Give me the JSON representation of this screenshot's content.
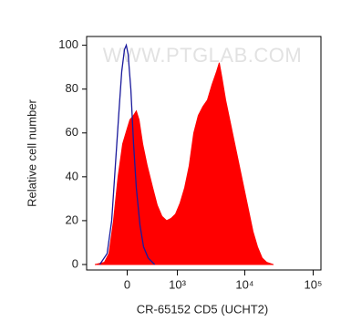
{
  "chart_data": {
    "type": "histogram-overlay",
    "watermark": "WWW.PTGLAB.COM",
    "x_label": "CR-65152 CD5 (UCHT2)",
    "y_label": "Relative cell number",
    "xscale": "biexponential",
    "xlim": [
      -700,
      130000
    ],
    "ylim": [
      -2.5,
      104
    ],
    "xticks": [
      {
        "value": 0,
        "label": "0"
      },
      {
        "value": 1000,
        "label": "10³"
      },
      {
        "value": 10000,
        "label": "10⁴"
      },
      {
        "value": 100000,
        "label": "10⁵"
      }
    ],
    "yticks": [
      0,
      20,
      40,
      60,
      80,
      100
    ],
    "series": [
      {
        "color": "#ff0000",
        "fill": true,
        "x": [
          -495,
          -323,
          -249,
          -182,
          -119,
          -59,
          0,
          35,
          83,
          119,
          157,
          209,
          278,
          370,
          457,
          555,
          669,
          792,
          934,
          1101,
          1294,
          1517,
          1776,
          2078,
          2425,
          2834,
          3308,
          3862,
          4236,
          4645,
          5256,
          6127,
          7147,
          8335,
          9718,
          11330,
          13217,
          15395,
          17954,
          20934,
          25938
        ],
        "values": [
          0,
          1,
          5,
          20,
          40,
          55,
          62,
          66,
          68,
          70,
          66,
          55,
          45,
          35,
          27,
          22,
          20,
          21,
          23,
          28,
          35,
          45,
          60,
          68,
          72,
          75,
          82,
          88,
          92,
          85,
          75,
          65,
          55,
          45,
          35,
          25,
          15,
          8,
          3,
          1,
          0
        ]
      },
      {
        "color": "#1a1a9c",
        "fill": false,
        "x": [
          -405,
          -278,
          -209,
          -157,
          -107,
          -71,
          -35,
          -12,
          12,
          47,
          83,
          119,
          169,
          222,
          293,
          405
        ],
        "values": [
          0,
          5,
          20,
          45,
          70,
          88,
          98,
          100,
          96,
          80,
          55,
          35,
          18,
          8,
          3,
          0
        ]
      }
    ]
  }
}
